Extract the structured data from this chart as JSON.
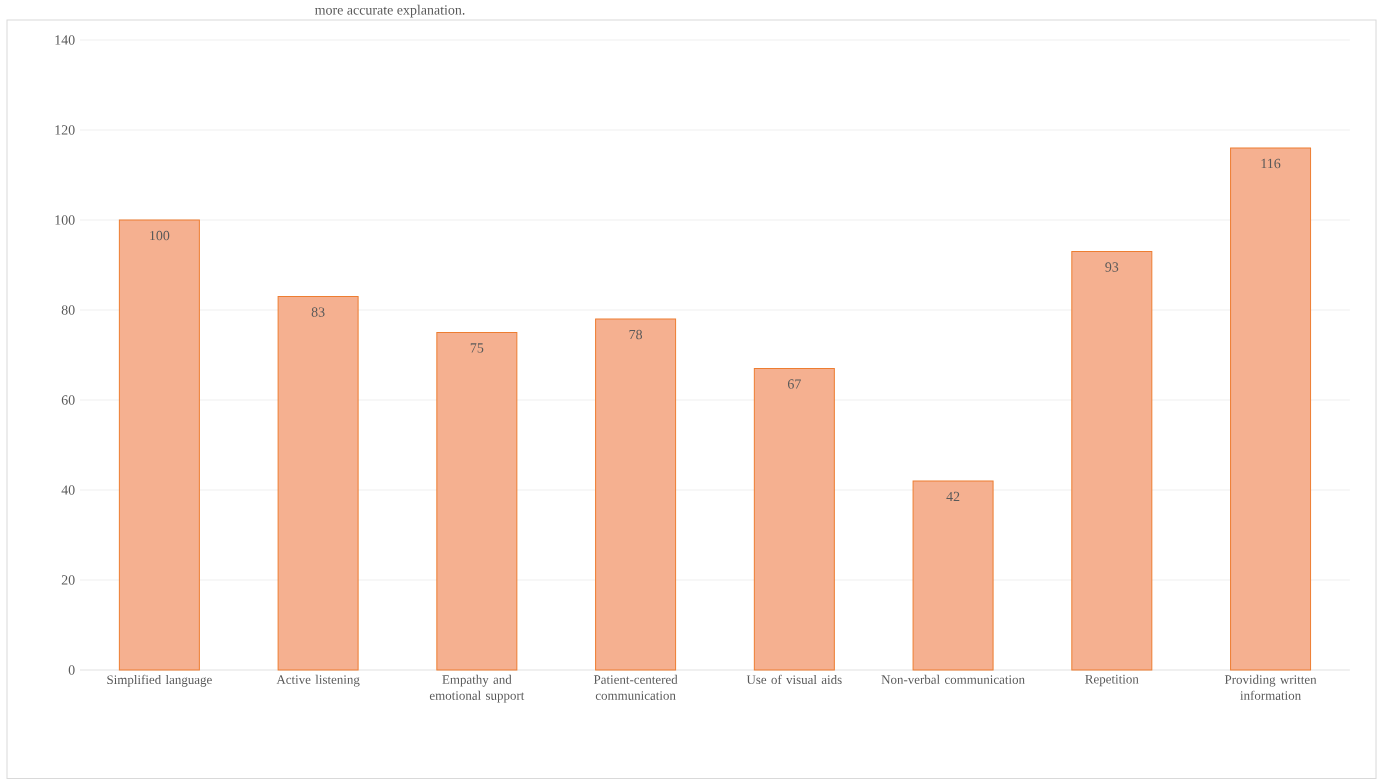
{
  "chart_data": {
    "type": "bar",
    "annotations": [
      "more accurate explanation."
    ],
    "categories": [
      "Simplified language",
      "Active listening",
      "Empathy and emotional support",
      "Patient-centered communication",
      "Use of visual aids",
      "Non-verbal communication",
      "Repetition",
      "Providing written information"
    ],
    "values": [
      100,
      83,
      75,
      78,
      67,
      42,
      93,
      116
    ],
    "color": "#f5b090",
    "ylim": [
      0,
      140
    ],
    "yticks": [
      0,
      20,
      40,
      60,
      80,
      100,
      120,
      140
    ],
    "grid": "y",
    "data_labels": true
  }
}
